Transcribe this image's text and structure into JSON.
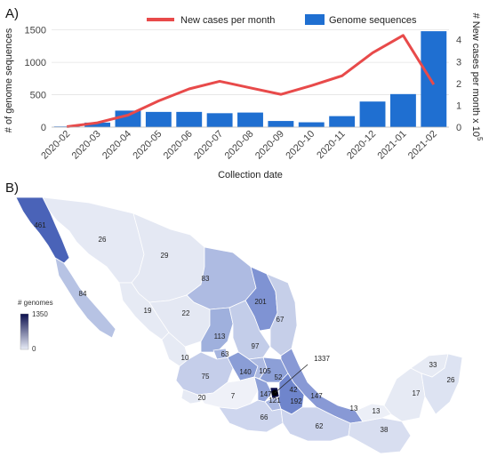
{
  "panel_a_label": "A)",
  "panel_b_label": "B)",
  "chart_data": {
    "type": "bar",
    "categories": [
      "2020-02",
      "2020-03",
      "2020-04",
      "2020-05",
      "2020-06",
      "2020-07",
      "2020-08",
      "2020-09",
      "2020-10",
      "2020-11",
      "2020-12",
      "2021-01",
      "2021-02"
    ],
    "series": [
      {
        "name": "Genome sequences",
        "kind": "bar",
        "axis": "left",
        "color": "#1f6fd1",
        "values": [
          10,
          70,
          255,
          235,
          235,
          215,
          225,
          95,
          75,
          170,
          395,
          510,
          1480
        ]
      },
      {
        "name": "New cases per month",
        "kind": "line",
        "axis": "right",
        "color": "#e84a4a",
        "values": [
          0.02,
          0.2,
          0.55,
          1.2,
          1.75,
          2.1,
          1.8,
          1.5,
          1.9,
          2.35,
          3.4,
          4.2,
          1.95
        ]
      }
    ],
    "xlabel": "Collection date",
    "ylabel": "# of genome sequences",
    "y2label": "# New cases per month x 10",
    "y2label_exp": "5",
    "ylim": [
      0,
      1550
    ],
    "y2lim": [
      0,
      4.6
    ],
    "yticks": [
      "0",
      "500",
      "1000",
      "1500"
    ],
    "y2ticks": [
      "0",
      "1",
      "2",
      "3",
      "4"
    ],
    "legend_position": "top-center",
    "grid": true
  },
  "map": {
    "colorbar_title": "# genomes",
    "colorbar_max": "1350",
    "colorbar_min": "0",
    "labels": [
      "461",
      "26",
      "29",
      "84",
      "19",
      "22",
      "83",
      "201",
      "67",
      "113",
      "97",
      "63",
      "10",
      "75",
      "140",
      "105",
      "52",
      "1337",
      "42",
      "147",
      "121",
      "192",
      "147",
      "7",
      "20",
      "66",
      "62",
      "13",
      "13",
      "38",
      "17",
      "33",
      "26"
    ]
  }
}
